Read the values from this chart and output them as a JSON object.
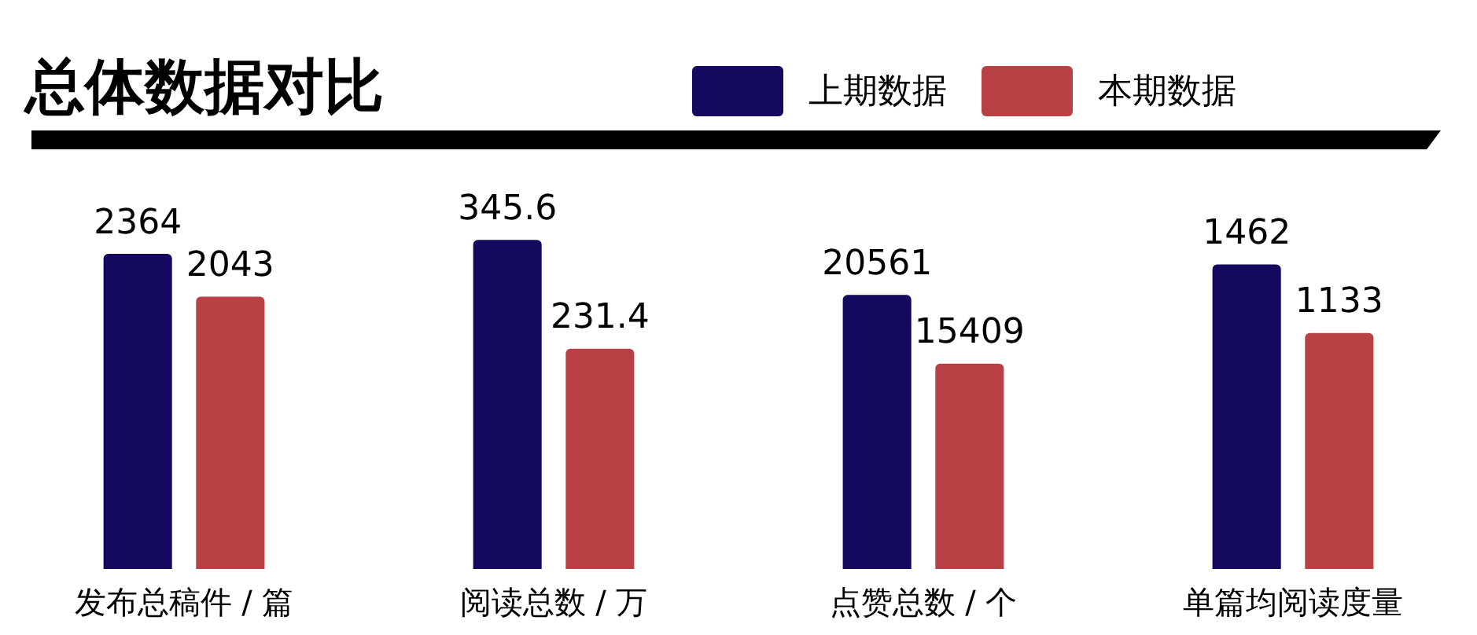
{
  "chart_data": [
    {
      "type": "bar",
      "title": "总体数据对比",
      "legend": "top right",
      "data_labels": true,
      "categories": [
        "发布总稿件 / 篇"
      ],
      "series": [
        {
          "name": "上期数据",
          "color": "#130a60",
          "values": [
            2364
          ]
        },
        {
          "name": "本期数据",
          "color": "#b94045",
          "values": [
            2043
          ]
        }
      ]
    },
    {
      "type": "bar",
      "data_labels": true,
      "categories": [
        "阅读总数 / 万"
      ],
      "series": [
        {
          "color": "#130a60",
          "values": [
            345.6
          ]
        },
        {
          "color": "#b94045",
          "values": [
            231.4
          ]
        }
      ]
    },
    {
      "type": "bar",
      "data_labels": true,
      "categories": [
        "点赞总数 / 个"
      ],
      "series": [
        {
          "color": "#130a60",
          "values": [
            20561
          ]
        },
        {
          "color": "#b94045",
          "values": [
            15409
          ]
        }
      ]
    },
    {
      "type": "bar",
      "data_labels": true,
      "categories": [
        "单篇均阅读度量"
      ],
      "series": [
        {
          "color": "#130a60",
          "values": [
            1462
          ]
        },
        {
          "color": "#b94045",
          "values": [
            1133
          ]
        }
      ]
    }
  ]
}
